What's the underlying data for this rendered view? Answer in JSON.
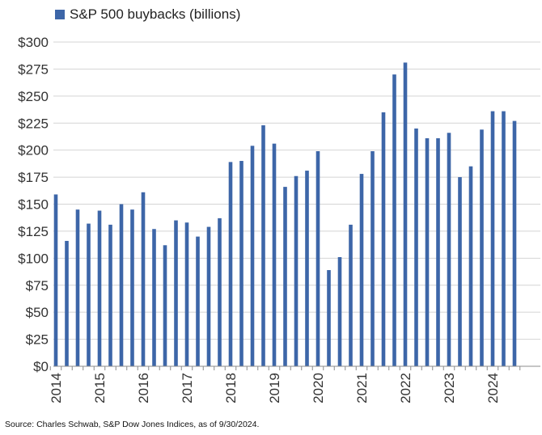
{
  "colors": {
    "bar": "#3d66a8",
    "grid": "#d4d4d4",
    "axis": "#8c8c8c",
    "text": "#333333"
  },
  "chart_data": {
    "type": "bar",
    "title": "",
    "legend": "S&P 500 buybacks (billions)",
    "legend_position": "top-left",
    "xlabel": "",
    "ylabel": "",
    "ylim": [
      0,
      300
    ],
    "y_ticks": [
      0,
      25,
      50,
      75,
      100,
      125,
      150,
      175,
      200,
      225,
      250,
      275,
      300
    ],
    "y_tick_labels": [
      "$0",
      "$25",
      "$50",
      "$75",
      "$100",
      "$125",
      "$150",
      "$175",
      "$200",
      "$225",
      "$250",
      "$275",
      "$300"
    ],
    "x_tick_labels": [
      "2014",
      "2015",
      "2016",
      "2017",
      "2018",
      "2019",
      "2020",
      "2021",
      "2022",
      "2023",
      "2024"
    ],
    "grid": true,
    "categories": [
      "2014 Q1",
      "2014 Q2",
      "2014 Q3",
      "2014 Q4",
      "2015 Q1",
      "2015 Q2",
      "2015 Q3",
      "2015 Q4",
      "2016 Q1",
      "2016 Q2",
      "2016 Q3",
      "2016 Q4",
      "2017 Q1",
      "2017 Q2",
      "2017 Q3",
      "2017 Q4",
      "2018 Q1",
      "2018 Q2",
      "2018 Q3",
      "2018 Q4",
      "2019 Q1",
      "2019 Q2",
      "2019 Q3",
      "2019 Q4",
      "2020 Q1",
      "2020 Q2",
      "2020 Q3",
      "2020 Q4",
      "2021 Q1",
      "2021 Q2",
      "2021 Q3",
      "2021 Q4",
      "2022 Q1",
      "2022 Q2",
      "2022 Q3",
      "2022 Q4",
      "2023 Q1",
      "2023 Q2",
      "2023 Q3",
      "2023 Q4",
      "2024 Q1",
      "2024 Q2",
      "2024 Q3"
    ],
    "values": [
      159,
      116,
      145,
      132,
      144,
      131,
      150,
      145,
      161,
      127,
      112,
      135,
      133,
      120,
      129,
      137,
      189,
      190,
      204,
      223,
      206,
      166,
      176,
      181,
      199,
      89,
      101,
      131,
      178,
      199,
      235,
      270,
      281,
      220,
      211,
      211,
      216,
      175,
      185,
      219,
      236,
      236,
      227
    ]
  },
  "source": "Source: Charles Schwab, S&P Dow Jones Indices, as of 9/30/2024."
}
